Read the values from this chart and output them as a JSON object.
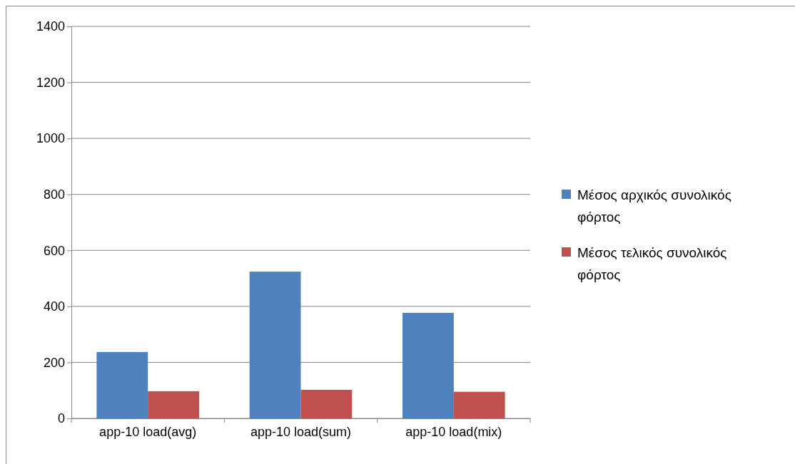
{
  "chart_data": {
    "type": "bar",
    "categories": [
      "app-10 load(avg)",
      "app-10 load(sum)",
      "app-10 load(mix)"
    ],
    "series": [
      {
        "name": "Μέσος αρχικός συνολικός φόρτος",
        "color": "#4f81bd",
        "values": [
          237,
          524,
          377
        ]
      },
      {
        "name": "Μέσος τελικός συνολικός φόρτος",
        "color": "#c0504d",
        "values": [
          97,
          102,
          95
        ]
      }
    ],
    "ylim": [
      0,
      1400
    ],
    "yticks": [
      0,
      200,
      400,
      600,
      800,
      1000,
      1200,
      1400
    ],
    "grid": "y",
    "legend": "right"
  }
}
